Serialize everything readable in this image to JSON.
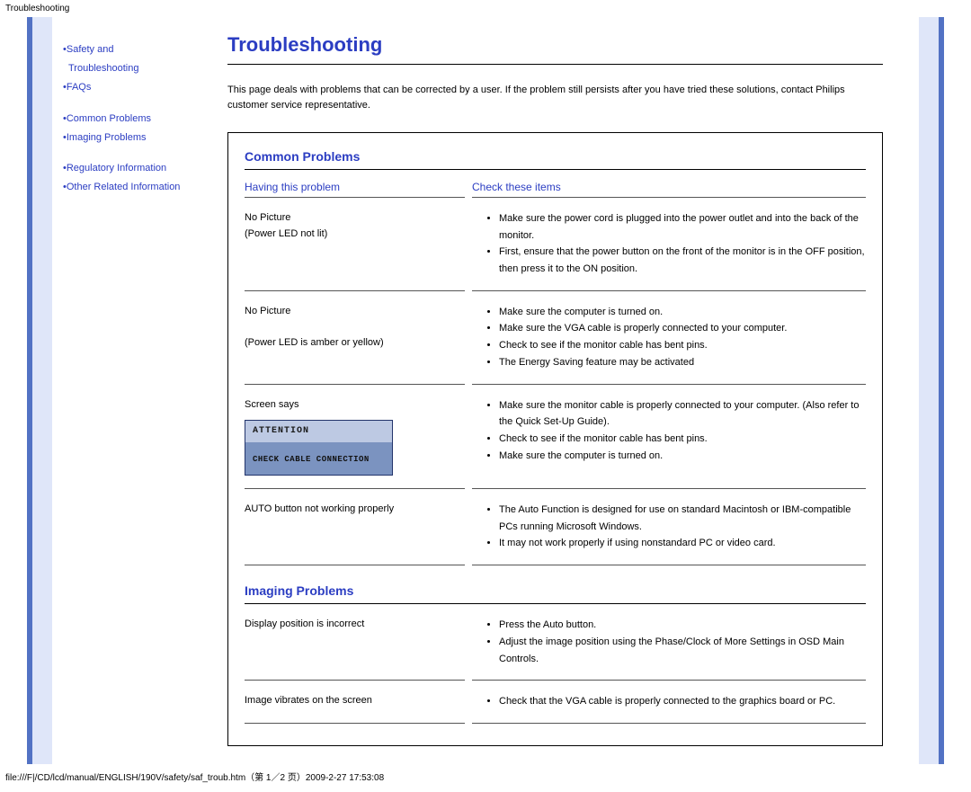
{
  "header": {
    "tab": "Troubleshooting"
  },
  "sidebar": {
    "items": [
      {
        "label": "Safety and"
      },
      {
        "label": "Troubleshooting"
      },
      {
        "label": "FAQs"
      },
      {
        "label": "Common Problems"
      },
      {
        "label": "Imaging Problems"
      },
      {
        "label": "Regulatory Information"
      },
      {
        "label": "Other Related Information"
      }
    ]
  },
  "main": {
    "title": "Troubleshooting",
    "intro": "This page deals with problems that can be corrected by a user. If the problem still persists after you have tried these solutions, contact Philips customer service representative.",
    "section_common": "Common Problems",
    "section_imaging": "Imaging Problems",
    "col_left": "Having this problem",
    "col_right": "Check these items",
    "rows": [
      {
        "problem": "No Picture\n(Power LED not lit)",
        "items": [
          "Make sure the power cord is plugged into the power outlet and into the back of the monitor.",
          "First, ensure that the power button on the front of the monitor is in the OFF position, then press it to the ON position."
        ]
      },
      {
        "problem": "No Picture\n\n(Power LED is amber or yellow)",
        "items": [
          "Make sure the computer is turned on.",
          "Make sure the VGA cable is properly connected to your computer.",
          "Check to see if the monitor cable has bent pins.",
          "The Energy Saving feature may be activated"
        ]
      },
      {
        "problem": "Screen says",
        "attn": true,
        "items": [
          "Make sure the monitor cable is properly connected to your computer. (Also refer to the Quick Set-Up Guide).",
          "Check to see if the monitor cable has bent pins.",
          "Make sure the computer is turned on."
        ]
      },
      {
        "problem": "AUTO button not working properly",
        "items": [
          "The Auto Function is designed for use on standard Macintosh or IBM-compatible PCs running Microsoft Windows.",
          "It may not work properly if using nonstandard PC or video card."
        ]
      }
    ],
    "rows_img": [
      {
        "problem": "Display position is incorrect",
        "items": [
          "Press the Auto button.",
          "Adjust the image position using the Phase/Clock of More Settings in OSD Main Controls."
        ]
      },
      {
        "problem": "Image vibrates on the screen",
        "items": [
          "Check that the VGA cable is properly connected to the graphics board or PC."
        ]
      }
    ],
    "attn_box": {
      "l1": "ATTENTION",
      "l2": "CHECK CABLE CONNECTION"
    }
  },
  "footer": "file:///F|/CD/lcd/manual/ENGLISH/190V/safety/saf_troub.htm（第 1／2 页）2009-2-27 17:53:08"
}
